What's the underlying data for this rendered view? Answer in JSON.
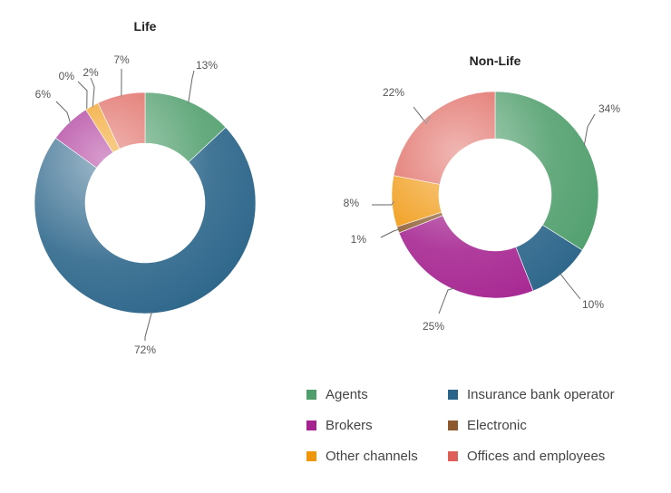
{
  "colors": {
    "Agents": "#4f9e6c",
    "Insurance bank operator": "#2a6489",
    "Brokers": "#a52390",
    "Electronic": "#8c5a2e",
    "Other channels": "#f0960a",
    "Offices and employees": "#de5f57"
  },
  "chart_data": [
    {
      "type": "pie",
      "title": "Life",
      "slices": [
        {
          "name": "Agents",
          "value": 13,
          "label": "13%"
        },
        {
          "name": "Insurance bank operator",
          "value": 72,
          "label": "72%"
        },
        {
          "name": "Brokers",
          "value": 6,
          "label": "6%"
        },
        {
          "name": "Electronic",
          "value": 0,
          "label": "0%"
        },
        {
          "name": "Other channels",
          "value": 2,
          "label": "2%"
        },
        {
          "name": "Offices and employees",
          "value": 7,
          "label": "7%"
        }
      ]
    },
    {
      "type": "pie",
      "title": "Non-Life",
      "slices": [
        {
          "name": "Agents",
          "value": 34,
          "label": "34%"
        },
        {
          "name": "Insurance bank operator",
          "value": 10,
          "label": "10%"
        },
        {
          "name": "Brokers",
          "value": 25,
          "label": "25%"
        },
        {
          "name": "Electronic",
          "value": 1,
          "label": "1%"
        },
        {
          "name": "Other channels",
          "value": 8,
          "label": "8%"
        },
        {
          "name": "Offices and employees",
          "value": 22,
          "label": "22%"
        }
      ]
    }
  ],
  "legend": {
    "items": [
      {
        "name": "Agents",
        "label": "Agents"
      },
      {
        "name": "Insurance bank operator",
        "label": "Insurance bank operator"
      },
      {
        "name": "Brokers",
        "label": "Brokers"
      },
      {
        "name": "Electronic",
        "label": "Electronic"
      },
      {
        "name": "Other channels",
        "label": "Other channels"
      },
      {
        "name": "Offices and employees",
        "label": "Offices and employees"
      }
    ]
  }
}
